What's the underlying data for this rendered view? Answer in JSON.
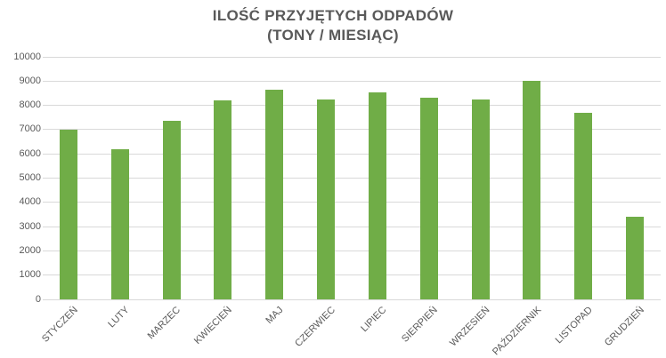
{
  "chart_data": {
    "type": "bar",
    "title_line1": "ILOŚĆ PRZYJĘTYCH ODPADÓW",
    "title_line2": "(TONY / MIESIĄC)",
    "categories": [
      "STYCZEŃ",
      "LUTY",
      "MARZEC",
      "KWIECIEŃ",
      "MAJ",
      "CZERWIEC",
      "LIPIEC",
      "SIERPIEŃ",
      "WRZESIEŃ",
      "PAŹDZIERNIK",
      "LISTOPAD",
      "GRUDZIEŃ"
    ],
    "values": [
      7000,
      6200,
      7350,
      8200,
      8650,
      8250,
      8550,
      8300,
      8250,
      9000,
      7700,
      3400
    ],
    "xlabel": "",
    "ylabel": "",
    "ylim": [
      0,
      10000
    ],
    "ytick_step": 1000,
    "yticks": [
      0,
      1000,
      2000,
      3000,
      4000,
      5000,
      6000,
      7000,
      8000,
      9000,
      10000
    ],
    "grid": true,
    "legend": false,
    "colors": {
      "bar": "#70AD47",
      "gridline": "#D9D9D9",
      "text": "#595959",
      "background": "#FFFFFF"
    }
  }
}
